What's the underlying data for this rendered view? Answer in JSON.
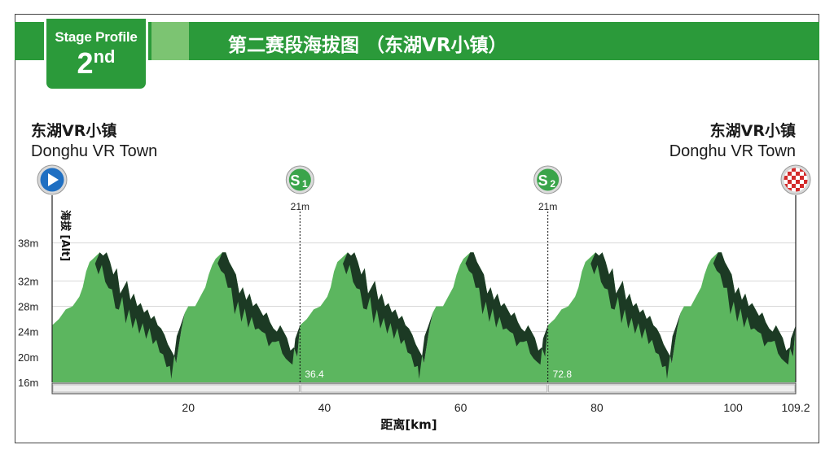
{
  "header": {
    "badge_title": "Stage Profile",
    "badge_number": "2",
    "badge_suffix": "nd",
    "title": "第二赛段海拔图 （东湖VR小镇）"
  },
  "places": {
    "start_cn": "东湖VR小镇",
    "start_en": "Donghu VR Town",
    "finish_cn": "东湖VR小镇",
    "finish_en": "Donghu VR Town"
  },
  "colors": {
    "profile_fill": "#5cb65f",
    "profile_shade": "#1c3a24",
    "header_green": "#2b9a3a",
    "start_blue": "#1f6fc2",
    "finish_red": "#d22a2a"
  },
  "chart_data": {
    "type": "area",
    "xlabel": "距离[km]",
    "ylabel": "海拔 [Alt]",
    "xlim": [
      0,
      109.2
    ],
    "ylim": [
      16,
      40
    ],
    "x_ticks": [
      20,
      40,
      60,
      80,
      100,
      109.2
    ],
    "x_tick_labels": [
      "20",
      "40",
      "60",
      "80",
      "100",
      "109.2"
    ],
    "y_ticks": [
      16,
      20,
      24,
      28,
      32,
      38
    ],
    "y_tick_labels": [
      "16m",
      "20m",
      "24m",
      "28m",
      "32m",
      "38m"
    ],
    "grid": true,
    "laps": 3,
    "lap_length_km": 36.4,
    "x": [
      0,
      1,
      2,
      3,
      4,
      4.5,
      5,
      5.5,
      6,
      6.5,
      7,
      7.5,
      8,
      8.5,
      9,
      9.5,
      10,
      10.5,
      11,
      11.5,
      12,
      12.5,
      13,
      13.5,
      14,
      14.5,
      15,
      15.5,
      16,
      16.5,
      17,
      17.5,
      18,
      18.2,
      19,
      19.5,
      20,
      21,
      22,
      22.5,
      23,
      23.5,
      24,
      24.5,
      25,
      25.5,
      26,
      26.5,
      27,
      27.5,
      28,
      28.5,
      29,
      29.5,
      30,
      30.5,
      31,
      31.5,
      32,
      32.5,
      33,
      33.5,
      34,
      34.5,
      35,
      35.5,
      36,
      36.4
    ],
    "y": [
      25,
      26,
      27.5,
      28,
      29.5,
      31,
      33.5,
      35,
      35.5,
      36,
      36.5,
      36,
      36.5,
      35,
      33,
      34,
      30,
      31,
      32,
      29,
      30,
      28,
      28.5,
      27,
      27.5,
      26,
      26.5,
      25,
      24.5,
      23.5,
      22,
      21,
      20,
      19,
      24.5,
      27,
      28,
      28,
      30,
      31,
      33,
      34.5,
      35.5,
      36,
      36.5,
      36.5,
      35,
      34,
      33,
      30,
      31,
      29,
      30,
      28,
      28.5,
      27.5,
      26.5,
      27,
      25.5,
      24.5,
      24,
      25,
      24,
      23,
      21,
      21.5,
      20,
      25
    ],
    "sprints": [
      {
        "label": "S",
        "sub": "1",
        "km": 36.4,
        "elevation": "21m",
        "km_label": "36.4"
      },
      {
        "label": "S",
        "sub": "2",
        "km": 72.8,
        "elevation": "21m",
        "km_label": "72.8"
      }
    ]
  }
}
